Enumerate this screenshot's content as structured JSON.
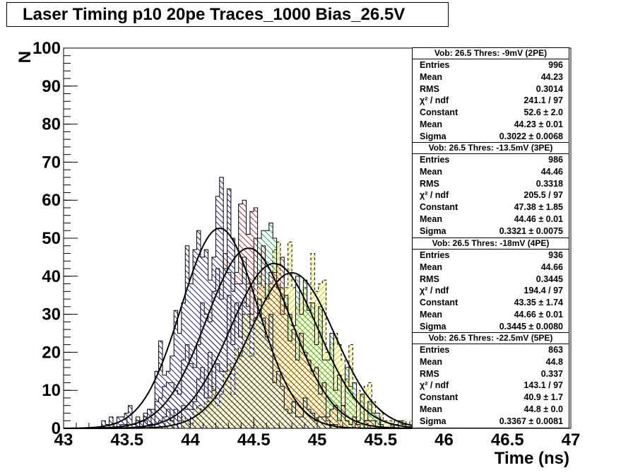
{
  "title": "Laser Timing p10 20pe  Traces_1000  Bias_26.5V",
  "chart_data": {
    "type": "bar",
    "subtype": "overlaid step histograms with gaussian fits",
    "xlabel": "Time (ns)",
    "ylabel": "N",
    "xlim": [
      43,
      47
    ],
    "ylim": [
      0,
      100
    ],
    "x_ticks": [
      "43",
      "43.5",
      "44",
      "44.5",
      "45",
      "45.5",
      "46",
      "46.5",
      "47"
    ],
    "y_ticks": [
      "0",
      "10",
      "20",
      "30",
      "40",
      "50",
      "60",
      "70",
      "80",
      "90",
      "100"
    ],
    "bin_width": 0.03,
    "grid": false,
    "series": [
      {
        "label": "Vob: 26.5  Thres: -9mV (2PE)",
        "color": "#000000",
        "hatch_color": "#1f1f7a",
        "hatch": "\\\\",
        "dashed": false,
        "stats": {
          "Entries": "996",
          "Mean": "44.23",
          "RMS": "0.3014",
          "chi2_ndf": "241.1 / 97",
          "Constant": "52.6 ± 2.0",
          "FitMean": "44.23 ± 0.01",
          "Sigma": "0.3022 ± 0.0068"
        },
        "fit": {
          "constant": 52.6,
          "mean": 44.23,
          "sigma": 0.3022
        }
      },
      {
        "label": "Vob: 26.5  Thres: -13.5mV (3PE)",
        "color": "#000000",
        "hatch_color": "#a03030",
        "hatch": "\\\\",
        "dashed": false,
        "stats": {
          "Entries": "986",
          "Mean": "44.46",
          "RMS": "0.3318",
          "chi2_ndf": "205.5 / 97",
          "Constant": "47.38 ± 1.85",
          "FitMean": "44.46 ± 0.01",
          "Sigma": "0.3321 ± 0.0075"
        },
        "fit": {
          "constant": 47.38,
          "mean": 44.46,
          "sigma": 0.3321
        }
      },
      {
        "label": "Vob: 26.5  Thres: -18mV (4PE)",
        "color": "#000000",
        "hatch_color": "#20a060",
        "hatch": "\\\\",
        "dashed": false,
        "stats": {
          "Entries": "936",
          "Mean": "44.66",
          "RMS": "0.3445",
          "chi2_ndf": "194.4 / 97",
          "Constant": "43.35 ± 1.74",
          "FitMean": "44.66 ± 0.01",
          "Sigma": "0.3445 ± 0.0080"
        },
        "fit": {
          "constant": 43.35,
          "mean": 44.66,
          "sigma": 0.3445
        }
      },
      {
        "label": "Vob: 26.5  Thres: -22.5mV (5PE)",
        "color": "#000000",
        "hatch_color": "#c8c840",
        "hatch": "//",
        "dashed": true,
        "fill": "#ffffd8",
        "stats": {
          "Entries": "863",
          "Mean": "44.8",
          "RMS": "0.337",
          "chi2_ndf": "143.1 / 97",
          "Constant": "40.9 ± 1.7",
          "FitMean": "44.8 ± 0.0",
          "Sigma": "0.3367 ± 0.0081"
        },
        "fit": {
          "constant": 40.9,
          "mean": 44.8,
          "sigma": 0.3367
        }
      }
    ]
  },
  "stats_labels": {
    "entries": "Entries",
    "mean": "Mean",
    "rms": "RMS",
    "chi2": "χ² / ndf",
    "constant": "Constant",
    "fitmean": "Mean",
    "sigma": "Sigma"
  }
}
